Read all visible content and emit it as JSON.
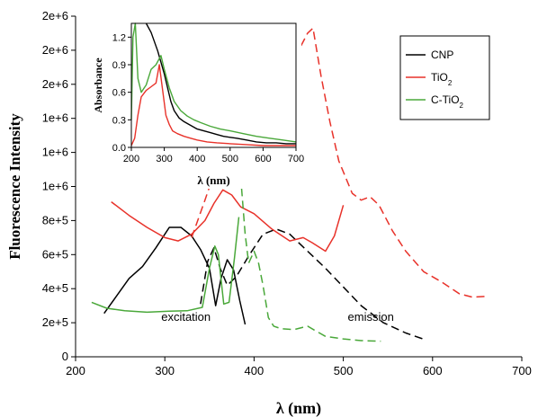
{
  "chart_data": [
    {
      "type": "line",
      "xlabel": "λ (nm)",
      "ylabel": "Fluorescence Intensity",
      "xlim": [
        200,
        700
      ],
      "ylim": [
        0,
        2000000
      ],
      "x_ticks": [
        "200",
        "300",
        "400",
        "500",
        "600",
        "700"
      ],
      "y_ticks": [
        "0",
        "2e+5",
        "4e+5",
        "6e+5",
        "8e+5",
        "1e+6",
        "1e+6",
        "1e+6",
        "2e+6",
        "2e+6",
        "2e+6"
      ],
      "grid": false,
      "legend": "top-right",
      "legend_entries": [
        {
          "label": "CNP",
          "sub": "",
          "color": "#000000"
        },
        {
          "label": "TiO",
          "sub": "2",
          "color": "#e8322a"
        },
        {
          "label": "C-TiO",
          "sub": "2",
          "color": "#4aa83a"
        }
      ],
      "annotations": {
        "excitation": "excitation",
        "emission": "emission"
      },
      "series": [
        {
          "color": "#000000",
          "style": "solid",
          "role": "excitation",
          "x": [
            232,
            245,
            260,
            275,
            290,
            305,
            318,
            330,
            340,
            350,
            357,
            363,
            370,
            377,
            384,
            390
          ],
          "y": [
            255000,
            350000,
            460000,
            530000,
            640000,
            760000,
            760000,
            710000,
            630000,
            520000,
            300000,
            460000,
            570000,
            510000,
            330000,
            190000
          ]
        },
        {
          "color": "#000000",
          "style": "dashed",
          "role": "emission",
          "x": [
            340,
            348,
            355,
            362,
            370,
            380,
            395,
            410,
            425,
            440,
            460,
            480,
            500,
            520,
            545,
            570,
            592
          ],
          "y": [
            310000,
            560000,
            640000,
            520000,
            420000,
            470000,
            600000,
            720000,
            750000,
            720000,
            620000,
            520000,
            410000,
            300000,
            200000,
            140000,
            100000
          ]
        },
        {
          "color": "#e8322a",
          "style": "solid",
          "role": "excitation",
          "x": [
            240,
            260,
            280,
            300,
            315,
            330,
            345,
            355,
            365,
            375,
            385,
            400,
            420,
            440,
            455,
            465,
            480,
            490,
            500
          ],
          "y": [
            910000,
            830000,
            760000,
            700000,
            680000,
            720000,
            800000,
            900000,
            980000,
            950000,
            880000,
            840000,
            750000,
            680000,
            700000,
            670000,
            620000,
            710000,
            890000
          ]
        },
        {
          "color": "#e8322a",
          "style": "dashed",
          "role": "emission",
          "x": [
            330,
            345,
            360,
            380,
            400,
            420,
            440,
            452,
            460,
            466,
            475,
            485,
            495,
            510,
            520,
            530,
            540,
            555,
            570,
            590,
            610,
            630,
            645,
            660
          ],
          "y": [
            700000,
            920000,
            1150000,
            1400000,
            1600000,
            1750000,
            1870000,
            1820000,
            1900000,
            1930000,
            1650000,
            1380000,
            1150000,
            960000,
            920000,
            940000,
            890000,
            740000,
            620000,
            500000,
            440000,
            370000,
            350000,
            355000
          ]
        },
        {
          "color": "#4aa83a",
          "style": "solid",
          "role": "excitation",
          "x": [
            218,
            235,
            255,
            280,
            305,
            325,
            342,
            350,
            356,
            360,
            366,
            372,
            378,
            383
          ],
          "y": [
            320000,
            285000,
            270000,
            262000,
            268000,
            270000,
            290000,
            520000,
            650000,
            600000,
            310000,
            320000,
            580000,
            820000
          ]
        },
        {
          "color": "#4aa83a",
          "style": "dashed",
          "role": "emission",
          "x": [
            386,
            390,
            394,
            400,
            405,
            410,
            416,
            422,
            430,
            445,
            460,
            468,
            480,
            500,
            520,
            542
          ],
          "y": [
            990000,
            720000,
            550000,
            620000,
            550000,
            420000,
            230000,
            180000,
            165000,
            160000,
            180000,
            155000,
            120000,
            105000,
            95000,
            92000
          ]
        }
      ]
    },
    {
      "type": "line",
      "xlabel": "λ (nm)",
      "ylabel": "Absorbance",
      "xlim": [
        200,
        700
      ],
      "ylim": [
        0,
        1.35
      ],
      "x_ticks": [
        "200",
        "300",
        "400",
        "500",
        "600",
        "700"
      ],
      "y_ticks": [
        "0.0",
        "0.3",
        "0.6",
        "0.9",
        "1.2"
      ],
      "series": [
        {
          "color": "#000000",
          "x": [
            245,
            260,
            280,
            300,
            320,
            330,
            345,
            360,
            380,
            400,
            420,
            440,
            460,
            480,
            500,
            520,
            550,
            580,
            610,
            640,
            670,
            700
          ],
          "y": [
            1.35,
            1.25,
            1.05,
            0.8,
            0.5,
            0.4,
            0.32,
            0.28,
            0.24,
            0.2,
            0.18,
            0.16,
            0.14,
            0.12,
            0.11,
            0.1,
            0.08,
            0.06,
            0.05,
            0.05,
            0.04,
            0.04
          ]
        },
        {
          "color": "#e8322a",
          "x": [
            200,
            210,
            220,
            230,
            245,
            260,
            275,
            285,
            295,
            305,
            315,
            325,
            340,
            360,
            380,
            400,
            430,
            460,
            500,
            550,
            600,
            650,
            700
          ],
          "y": [
            0.02,
            0.1,
            0.35,
            0.55,
            0.62,
            0.66,
            0.7,
            0.9,
            0.62,
            0.35,
            0.25,
            0.18,
            0.15,
            0.12,
            0.1,
            0.08,
            0.06,
            0.05,
            0.04,
            0.03,
            0.02,
            0.02,
            0.02
          ]
        },
        {
          "color": "#4aa83a",
          "x": [
            200,
            205,
            212,
            220,
            230,
            245,
            260,
            275,
            290,
            300,
            315,
            330,
            350,
            370,
            390,
            410,
            440,
            470,
            500,
            540,
            580,
            620,
            660,
            700
          ],
          "y": [
            0.3,
            1.2,
            1.35,
            0.75,
            0.6,
            0.68,
            0.85,
            0.9,
            1.0,
            0.85,
            0.65,
            0.5,
            0.4,
            0.34,
            0.3,
            0.27,
            0.23,
            0.2,
            0.18,
            0.15,
            0.12,
            0.1,
            0.08,
            0.06
          ]
        }
      ]
    }
  ]
}
